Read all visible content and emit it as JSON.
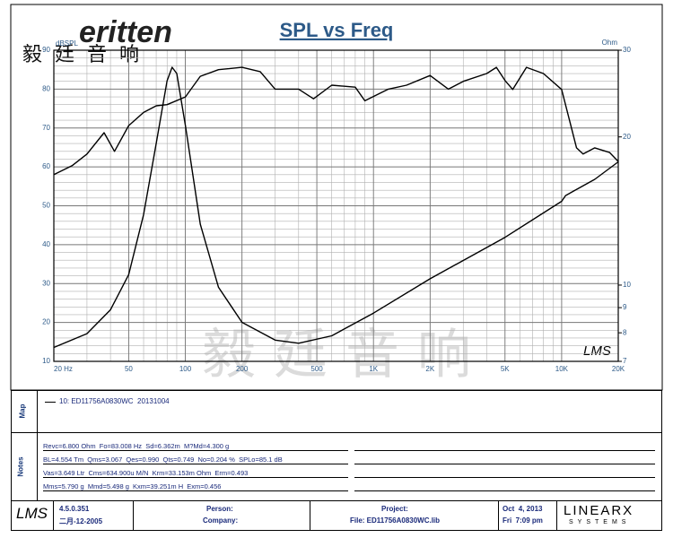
{
  "header": {
    "logo": "eritten",
    "logo_cn": "毅廷音响"
  },
  "chart_data": {
    "type": "line",
    "title": "SPL vs Freq",
    "y_label": "dBSPL",
    "y2_label": "Ohm",
    "watermark": "毅廷音响",
    "brand_mark": "LMS",
    "xscale": "log",
    "xlim": [
      20,
      20000
    ],
    "xticks": [
      {
        "value": 20,
        "label": "20 Hz"
      },
      50,
      100,
      200,
      500,
      {
        "value": 1000,
        "label": "1K"
      },
      {
        "value": 2000,
        "label": "2K"
      },
      {
        "value": 5000,
        "label": "5K"
      },
      {
        "value": 10000,
        "label": "10K"
      },
      {
        "value": 20000,
        "label": "20K"
      }
    ],
    "ylim": [
      10,
      90
    ],
    "yticks": [
      10,
      20,
      30,
      40,
      50,
      60,
      70,
      80,
      90
    ],
    "y2scale": "log",
    "y2lim": [
      7,
      30
    ],
    "y2ticks": [
      30,
      20,
      10,
      9,
      8,
      7
    ],
    "grid": true,
    "series": [
      {
        "color": "#000000",
        "x": [
          20,
          25,
          30,
          37,
          42,
          50,
          60,
          70,
          80,
          100,
          120,
          150,
          200,
          250,
          300,
          400,
          480,
          600,
          800,
          900,
          1200,
          1500,
          2000,
          2500,
          3000,
          4000,
          4500,
          5000,
          5500,
          6500,
          8000,
          10000,
          12000,
          13000,
          15000,
          18000,
          20000
        ],
        "values": [
          58,
          60.3,
          63.3,
          68.8,
          64,
          70.6,
          74,
          75.7,
          76,
          78,
          83.3,
          85,
          85.6,
          84.5,
          80,
          80,
          77.5,
          81,
          80.5,
          77,
          80,
          81,
          83.5,
          80,
          82,
          84,
          85.6,
          82.2,
          79.9,
          85.6,
          84,
          79.9,
          64.9,
          63.3,
          64.9,
          63.7,
          61.4
        ]
      },
      {
        "color": "#000000",
        "axis": "y2",
        "x": [
          20,
          30,
          40,
          50,
          60,
          70,
          80,
          85,
          90,
          100,
          120,
          150,
          200,
          300,
          400,
          600,
          1000,
          2000,
          5000,
          10000,
          10500,
          15000,
          20000
        ],
        "values": [
          7.47,
          7.97,
          8.91,
          10.5,
          13.9,
          19.4,
          26,
          27.7,
          26.9,
          21.1,
          13.3,
          9.9,
          8.4,
          7.73,
          7.62,
          7.89,
          8.77,
          10.3,
          12.5,
          14.8,
          15.2,
          16.4,
          17.8
        ]
      }
    ]
  },
  "map": {
    "label": "Map",
    "entry": "10: ED11756A0830WC  20131004"
  },
  "notes": {
    "label": "Notes",
    "lines": [
      "Revc=6.800 Ohm  Fo=83.008 Hz  Sd=6.362m  M?Md=4.300 g",
      "BL=4.554 Tm  Qms=3.067  Qes=0.990  Qts=0.749  No=0.204 %  SPLo=85.1 dB",
      "Vas=3.649 Ltr  Cms=634.900u M/N  Krm=33.153m Ohm  Erm=0.493",
      "Mms=5.790 g  Mmd=5.498 g  Kxm=39.251m H  Exm=0.456"
    ]
  },
  "footer": {
    "logo": "LMS",
    "version": "4.5.0.351",
    "build_date": "二月-12-2005",
    "person": "Person:",
    "company": "Company:",
    "project": "Project:",
    "file": "File: ED11756A0830WC.lib",
    "date": "Oct  4, 2013",
    "time": "Fri  7:09 pm",
    "brand": "LINEARX",
    "brand_sub": "SYSTEMS"
  }
}
